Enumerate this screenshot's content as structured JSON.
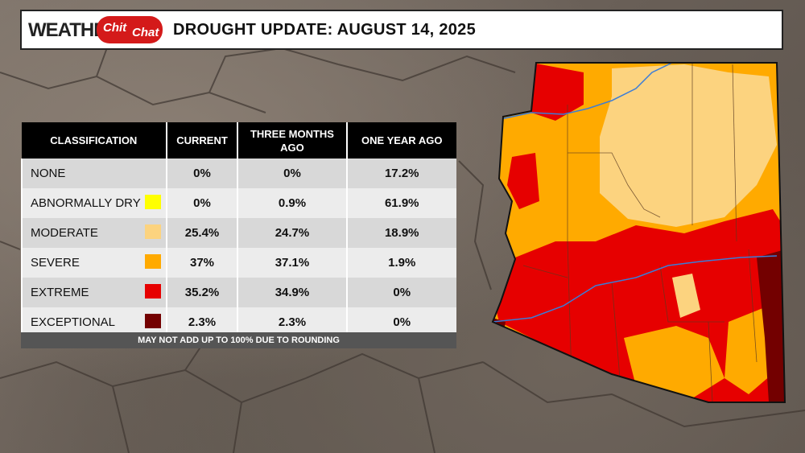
{
  "header": {
    "logo_weather": "WEATHER",
    "logo_chit": "Chit",
    "logo_chat": "Chat",
    "title": "DROUGHT UPDATE: AUGUST 14, 2025"
  },
  "table": {
    "headers": [
      "CLASSIFICATION",
      "CURRENT",
      "THREE MONTHS AGO",
      "ONE YEAR AGO"
    ],
    "rows": [
      {
        "label": "NONE",
        "current": "0%",
        "three_months": "0%",
        "one_year": "17.2%",
        "color": ""
      },
      {
        "label": "ABNORMALLY DRY",
        "current": "0%",
        "three_months": "0.9%",
        "one_year": "61.9%",
        "color": "#ffff00"
      },
      {
        "label": "MODERATE",
        "current": "25.4%",
        "three_months": "24.7%",
        "one_year": "18.9%",
        "color": "#fcd37f"
      },
      {
        "label": "SEVERE",
        "current": "37%",
        "three_months": "37.1%",
        "one_year": "1.9%",
        "color": "#ffaa00"
      },
      {
        "label": "EXTREME",
        "current": "35.2%",
        "three_months": "34.9%",
        "one_year": "0%",
        "color": "#e60000"
      },
      {
        "label": "EXCEPTIONAL",
        "current": "2.3%",
        "three_months": "2.3%",
        "one_year": "0%",
        "color": "#730000"
      }
    ],
    "footnote": "MAY NOT ADD UP TO 100% DUE TO ROUNDING"
  },
  "map_colors": {
    "moderate": "#fcd37f",
    "severe": "#ffaa00",
    "extreme": "#e60000",
    "exceptional": "#730000",
    "river": "#3b7dd8"
  }
}
